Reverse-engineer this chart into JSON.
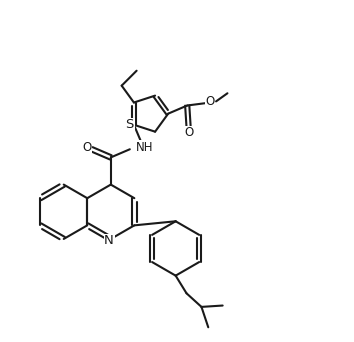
{
  "background_color": "#ffffff",
  "line_color": "#1a1a1a",
  "line_width": 1.5,
  "font_size": 8.5,
  "figsize": [
    3.54,
    3.42
  ],
  "dpi": 100,
  "xlim": [
    0,
    10
  ],
  "ylim": [
    0,
    9.6
  ]
}
